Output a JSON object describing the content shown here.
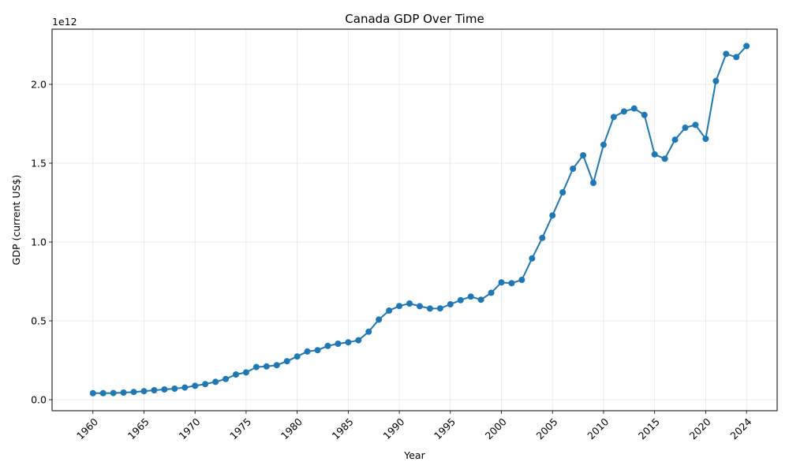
{
  "chart_data": {
    "type": "line",
    "title": "Canada GDP Over Time",
    "xlabel": "Year",
    "ylabel": "GDP (current US$)",
    "y_offset_label": "1e12",
    "y_unit_scale": 1000000000000.0,
    "xlim": [
      1956,
      2027
    ],
    "ylim": [
      -70000000000.0,
      2350000000000.0
    ],
    "x_ticks": [
      1960,
      1965,
      1970,
      1975,
      1980,
      1985,
      1990,
      1995,
      2000,
      2005,
      2010,
      2015,
      2020,
      2024
    ],
    "y_ticks": [
      0,
      500000000000.0,
      1000000000000.0,
      1500000000000.0,
      2000000000000.0
    ],
    "y_tick_labels": [
      "0.0",
      "0.5",
      "1.0",
      "1.5",
      "2.0"
    ],
    "grid": true,
    "color": "#1f77b4",
    "series": [
      {
        "name": "",
        "x": [
          1960,
          1961,
          1962,
          1963,
          1964,
          1965,
          1966,
          1967,
          1968,
          1969,
          1970,
          1971,
          1972,
          1973,
          1974,
          1975,
          1976,
          1977,
          1978,
          1979,
          1980,
          1981,
          1982,
          1983,
          1984,
          1985,
          1986,
          1987,
          1988,
          1989,
          1990,
          1991,
          1992,
          1993,
          1994,
          1995,
          1996,
          1997,
          1998,
          1999,
          2000,
          2001,
          2002,
          2003,
          2004,
          2005,
          2006,
          2007,
          2008,
          2009,
          2010,
          2011,
          2012,
          2013,
          2014,
          2015,
          2016,
          2017,
          2018,
          2019,
          2020,
          2021,
          2022,
          2023,
          2024
        ],
        "y": [
          41000000000.0,
          41000000000.0,
          42000000000.0,
          45000000000.0,
          49000000000.0,
          54000000000.0,
          60000000000.0,
          65000000000.0,
          70000000000.0,
          77000000000.0,
          88000000000.0,
          99000000000.0,
          113000000000.0,
          131000000000.0,
          160000000000.0,
          173000000000.0,
          207000000000.0,
          211000000000.0,
          219000000000.0,
          244000000000.0,
          274000000000.0,
          306000000000.0,
          314000000000.0,
          341000000000.0,
          355000000000.0,
          364000000000.0,
          377000000000.0,
          431000000000.0,
          508000000000.0,
          565000000000.0,
          594000000000.0,
          610000000000.0,
          593000000000.0,
          578000000000.0,
          579000000000.0,
          605000000000.0,
          631000000000.0,
          654000000000.0,
          634000000000.0,
          678000000000.0,
          744000000000.0,
          739000000000.0,
          760000000000.0,
          896000000000.0,
          1026000000000.0,
          1169000000000.0,
          1315000000000.0,
          1465000000000.0,
          1550000000000.0,
          1375000000000.0,
          1617000000000.0,
          1793000000000.0,
          1828000000000.0,
          1847000000000.0,
          1806000000000.0,
          1556000000000.0,
          1528000000000.0,
          1649000000000.0,
          1725000000000.0,
          1743000000000.0,
          1655000000000.0,
          2021000000000.0,
          2193000000000.0,
          2173000000000.0,
          2243000000000.0
        ]
      }
    ]
  }
}
